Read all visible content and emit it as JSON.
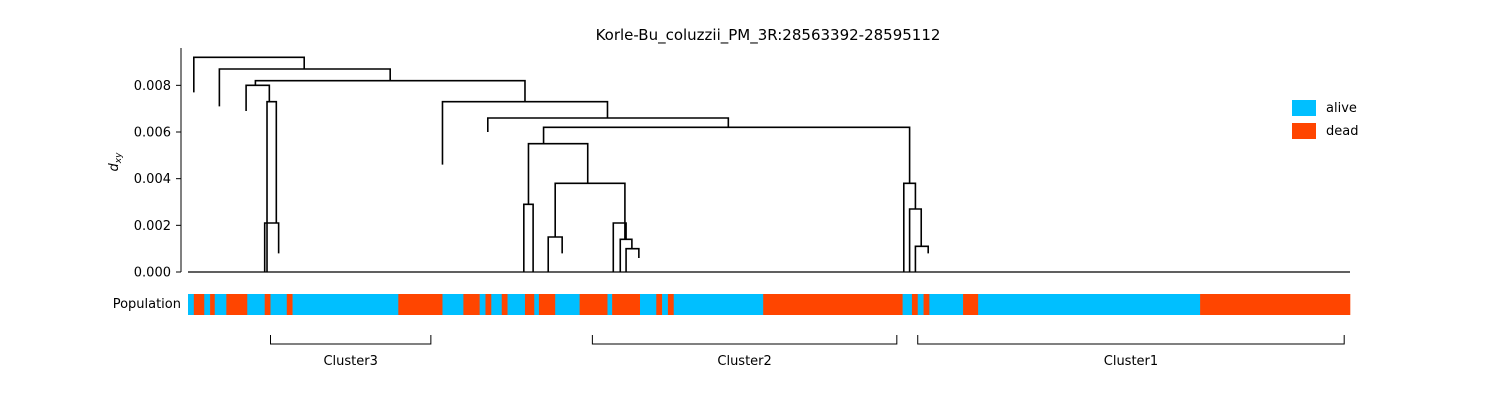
{
  "chart_data": {
    "type": "dendrogram",
    "title": "Korle-Bu_coluzzii_PM_3R:28563392-28595112",
    "ylabel": "d",
    "ylabel_sub": "xy",
    "ylim": [
      0,
      0.0096
    ],
    "yticks": [
      {
        "value": 0.0,
        "label": "0.000"
      },
      {
        "value": 0.002,
        "label": "0.002"
      },
      {
        "value": 0.004,
        "label": "0.004"
      },
      {
        "value": 0.006,
        "label": "0.006"
      },
      {
        "value": 0.008,
        "label": "0.008"
      }
    ],
    "n_leaves": 1000,
    "merges": [
      {
        "name": "top-merge-1",
        "height": 0.0092,
        "left": {
          "x": 5,
          "h": 0.0077
        },
        "right": {
          "x": 100,
          "h": 0.0087
        }
      },
      {
        "name": "top-merge-2",
        "height": 0.0087,
        "left": {
          "x": 27,
          "h": 0.0071
        },
        "right": {
          "x": 174,
          "h": 0.0082
        }
      },
      {
        "name": "top-merge-3",
        "height": 0.0082,
        "left": {
          "x": 58,
          "h": 0.008
        },
        "right": {
          "x": 290,
          "h": 0.0073
        }
      },
      {
        "name": "mid-merge-1",
        "height": 0.0073,
        "left": {
          "x": 219,
          "h": 0.0046
        },
        "right": {
          "x": 361,
          "h": 0.0066
        }
      },
      {
        "name": "mid-merge-2",
        "height": 0.0066,
        "left": {
          "x": 258,
          "h": 0.006
        },
        "right": {
          "x": 465,
          "h": 0.0062
        }
      },
      {
        "name": "mid-merge-3",
        "height": 0.0062,
        "left": {
          "x": 306,
          "h": 0.0055
        },
        "right": {
          "x": 621,
          "h": 0.0038
        }
      },
      {
        "name": "c2-merge-1",
        "height": 0.0055,
        "left": {
          "x": 293,
          "h": 0.0029
        },
        "right": {
          "x": 344,
          "h": 0.0038
        }
      },
      {
        "name": "c2-merge-2",
        "height": 0.0038,
        "left": {
          "x": 316,
          "h": 0.0015
        },
        "right": {
          "x": 376,
          "h": 0.0014
        }
      },
      {
        "name": "c2-merge-3",
        "height": 0.0029,
        "left": {
          "x": 289,
          "h": 0.0
        },
        "right": {
          "x": 297,
          "h": 0.0
        }
      },
      {
        "name": "c2-merge-4",
        "height": 0.0015,
        "left": {
          "x": 310,
          "h": 0.0
        },
        "right": {
          "x": 322,
          "h": 0.0008
        }
      },
      {
        "name": "c2-merge-5",
        "height": 0.0021,
        "left": {
          "x": 366,
          "h": 0.0
        },
        "right": {
          "x": 377,
          "h": 0.0014
        }
      },
      {
        "name": "c2-merge-6",
        "height": 0.0014,
        "left": {
          "x": 372,
          "h": 0.0
        },
        "right": {
          "x": 382,
          "h": 0.001
        }
      },
      {
        "name": "c2-merge-7",
        "height": 0.001,
        "left": {
          "x": 377,
          "h": 0.0
        },
        "right": {
          "x": 388,
          "h": 0.0006
        }
      },
      {
        "name": "c1-merge-1",
        "height": 0.0038,
        "left": {
          "x": 616,
          "h": 0.0
        },
        "right": {
          "x": 626,
          "h": 0.0027
        }
      },
      {
        "name": "c1-merge-2",
        "height": 0.0027,
        "left": {
          "x": 621,
          "h": 0.0
        },
        "right": {
          "x": 631,
          "h": 0.0011
        }
      },
      {
        "name": "c1-merge-3",
        "height": 0.0011,
        "left": {
          "x": 626,
          "h": 0.0
        },
        "right": {
          "x": 637,
          "h": 0.0008
        }
      },
      {
        "name": "c3-merge-1",
        "height": 0.0021,
        "left": {
          "x": 66,
          "h": 0.0
        },
        "right": {
          "x": 78,
          "h": 0.0008
        }
      },
      {
        "name": "c3-merge-2",
        "height": 0.0073,
        "left": {
          "x": 68,
          "h": 0.0
        },
        "right": {
          "x": 76,
          "h": 0.0021
        }
      },
      {
        "name": "c3-merge-3",
        "height": 0.008,
        "left": {
          "x": 50,
          "h": 0.0069
        },
        "right": {
          "x": 70,
          "h": 0.0073
        }
      }
    ],
    "population": {
      "label": "Population",
      "legend": [
        {
          "name": "alive",
          "color": "#00bfff"
        },
        {
          "name": "dead",
          "color": "#ff4500"
        }
      ],
      "segments": [
        {
          "state": "alive",
          "from": 0,
          "to": 5
        },
        {
          "state": "dead",
          "from": 5,
          "to": 14
        },
        {
          "state": "alive",
          "from": 14,
          "to": 19
        },
        {
          "state": "dead",
          "from": 19,
          "to": 23
        },
        {
          "state": "alive",
          "from": 23,
          "to": 33
        },
        {
          "state": "dead",
          "from": 33,
          "to": 51
        },
        {
          "state": "alive",
          "from": 51,
          "to": 66
        },
        {
          "state": "dead",
          "from": 66,
          "to": 71
        },
        {
          "state": "alive",
          "from": 71,
          "to": 85
        },
        {
          "state": "dead",
          "from": 85,
          "to": 90
        },
        {
          "state": "alive",
          "from": 90,
          "to": 181
        },
        {
          "state": "dead",
          "from": 181,
          "to": 219
        },
        {
          "state": "alive",
          "from": 219,
          "to": 237
        },
        {
          "state": "dead",
          "from": 237,
          "to": 251
        },
        {
          "state": "alive",
          "from": 251,
          "to": 256
        },
        {
          "state": "dead",
          "from": 256,
          "to": 261
        },
        {
          "state": "alive",
          "from": 261,
          "to": 270
        },
        {
          "state": "dead",
          "from": 270,
          "to": 275
        },
        {
          "state": "alive",
          "from": 275,
          "to": 290
        },
        {
          "state": "dead",
          "from": 290,
          "to": 298
        },
        {
          "state": "alive",
          "from": 298,
          "to": 302
        },
        {
          "state": "dead",
          "from": 302,
          "to": 316
        },
        {
          "state": "alive",
          "from": 316,
          "to": 337
        },
        {
          "state": "dead",
          "from": 337,
          "to": 361
        },
        {
          "state": "alive",
          "from": 361,
          "to": 365
        },
        {
          "state": "dead",
          "from": 365,
          "to": 389
        },
        {
          "state": "alive",
          "from": 389,
          "to": 403
        },
        {
          "state": "dead",
          "from": 403,
          "to": 408
        },
        {
          "state": "alive",
          "from": 408,
          "to": 413
        },
        {
          "state": "dead",
          "from": 413,
          "to": 418
        },
        {
          "state": "alive",
          "from": 418,
          "to": 495
        },
        {
          "state": "dead",
          "from": 495,
          "to": 615
        },
        {
          "state": "alive",
          "from": 615,
          "to": 623
        },
        {
          "state": "dead",
          "from": 623,
          "to": 628
        },
        {
          "state": "alive",
          "from": 628,
          "to": 633
        },
        {
          "state": "dead",
          "from": 633,
          "to": 638
        },
        {
          "state": "alive",
          "from": 638,
          "to": 667
        },
        {
          "state": "dead",
          "from": 667,
          "to": 680
        },
        {
          "state": "alive",
          "from": 680,
          "to": 871
        },
        {
          "state": "dead",
          "from": 871,
          "to": 1000
        }
      ]
    },
    "clusters": [
      {
        "label": "Cluster3",
        "from": 71,
        "to": 209
      },
      {
        "label": "Cluster2",
        "from": 348,
        "to": 610
      },
      {
        "label": "Cluster1",
        "from": 628,
        "to": 995
      }
    ]
  }
}
